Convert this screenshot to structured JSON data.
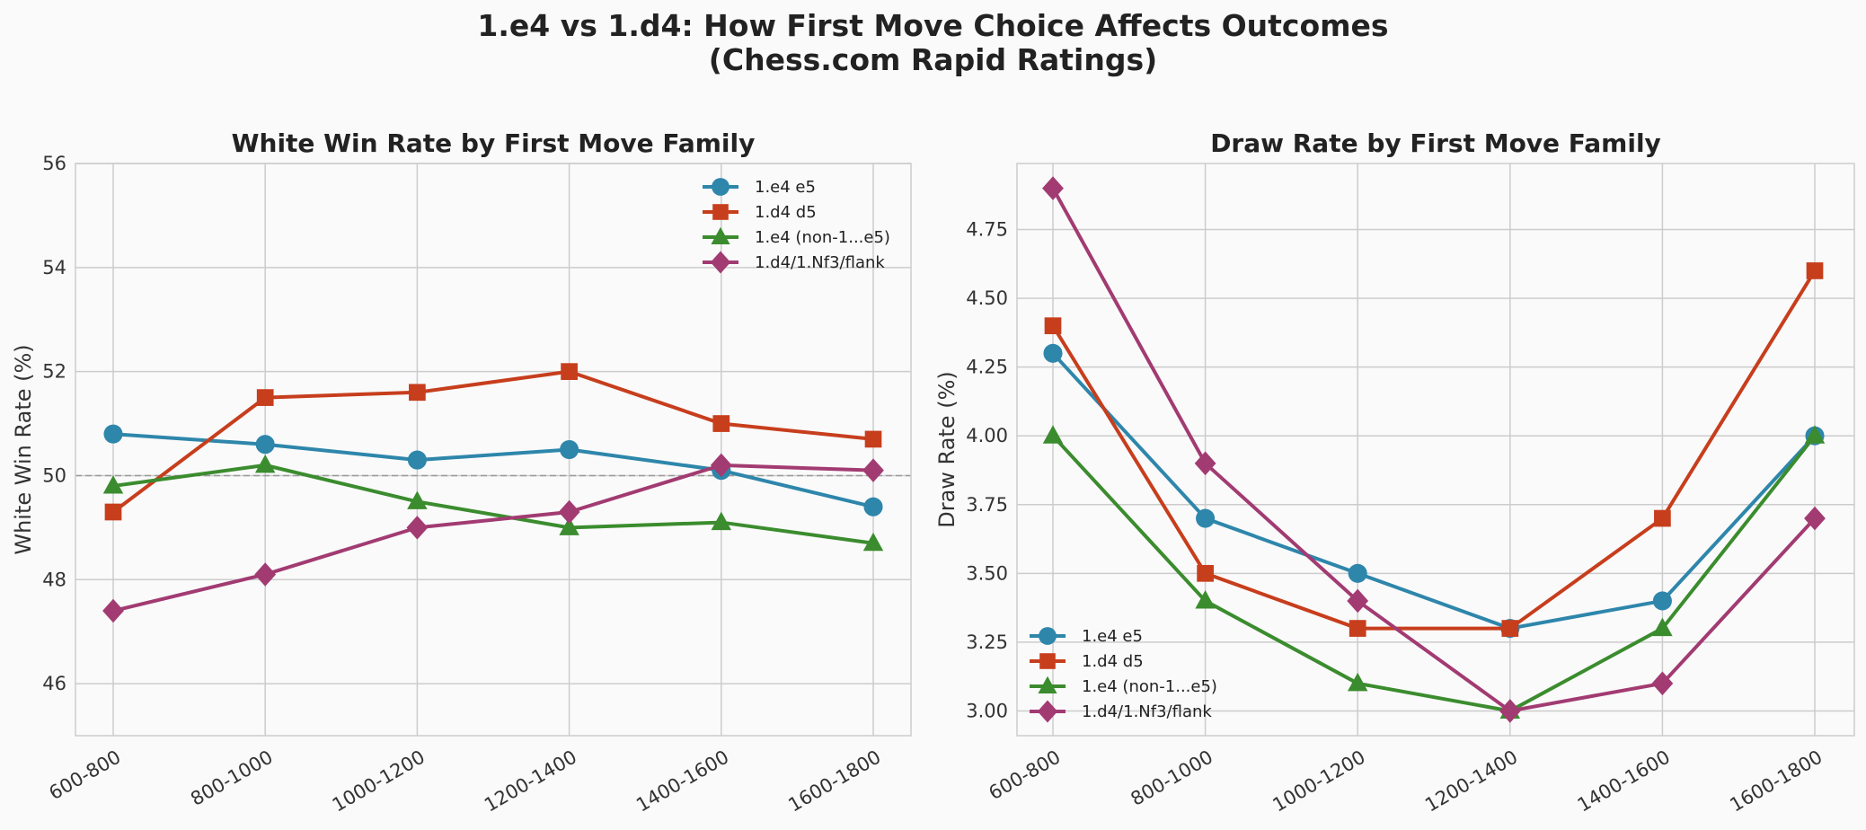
{
  "figure": {
    "title_line1": "1.e4 vs 1.d4: How First Move Choice Affects Outcomes",
    "title_line2": "(Chess.com Rapid Ratings)"
  },
  "chart_data": [
    {
      "type": "line",
      "title": "White Win Rate by First Move Family",
      "xlabel": "",
      "ylabel": "White Win Rate (%)",
      "categories": [
        "600-800",
        "800-1000",
        "1000-1200",
        "1200-1400",
        "1400-1600",
        "1600-1800"
      ],
      "ylim": [
        45,
        56
      ],
      "yticks": [
        46,
        48,
        50,
        52,
        54,
        56
      ],
      "ytick_labels": [
        "46",
        "48",
        "50",
        "52",
        "54",
        "56"
      ],
      "reference_line": 50,
      "grid": true,
      "legend_position": "upper-right",
      "series": [
        {
          "name": "1.e4 e5",
          "color": "#2e86ab",
          "marker": "circle",
          "values": [
            50.8,
            50.6,
            50.3,
            50.5,
            50.1,
            49.4
          ]
        },
        {
          "name": "1.d4 d5",
          "color": "#c73e1d",
          "marker": "square",
          "values": [
            49.3,
            51.5,
            51.6,
            52.0,
            51.0,
            50.7
          ]
        },
        {
          "name": "1.e4 (non-1...e5)",
          "color": "#3b8c2e",
          "marker": "triangle",
          "values": [
            49.8,
            50.2,
            49.5,
            49.0,
            49.1,
            48.7
          ]
        },
        {
          "name": "1.d4/1.Nf3/flank",
          "color": "#a23b72",
          "marker": "diamond",
          "values": [
            47.4,
            48.1,
            49.0,
            49.3,
            50.2,
            50.1
          ]
        }
      ]
    },
    {
      "type": "line",
      "title": "Draw Rate by First Move Family",
      "xlabel": "",
      "ylabel": "Draw Rate (%)",
      "categories": [
        "600-800",
        "800-1000",
        "1000-1200",
        "1200-1400",
        "1400-1600",
        "1600-1800"
      ],
      "ylim": [
        2.91,
        4.99
      ],
      "yticks": [
        3.0,
        3.25,
        3.5,
        3.75,
        4.0,
        4.25,
        4.5,
        4.75
      ],
      "ytick_labels": [
        "3.00",
        "3.25",
        "3.50",
        "3.75",
        "4.00",
        "4.25",
        "4.50",
        "4.75"
      ],
      "grid": true,
      "legend_position": "lower-left",
      "series": [
        {
          "name": "1.e4 e5",
          "color": "#2e86ab",
          "marker": "circle",
          "values": [
            4.3,
            3.7,
            3.5,
            3.3,
            3.4,
            4.0
          ]
        },
        {
          "name": "1.d4 d5",
          "color": "#c73e1d",
          "marker": "square",
          "values": [
            4.4,
            3.5,
            3.3,
            3.3,
            3.7,
            4.6
          ]
        },
        {
          "name": "1.e4 (non-1...e5)",
          "color": "#3b8c2e",
          "marker": "triangle",
          "values": [
            4.0,
            3.4,
            3.1,
            3.0,
            3.3,
            4.0
          ]
        },
        {
          "name": "1.d4/1.Nf3/flank",
          "color": "#a23b72",
          "marker": "diamond",
          "values": [
            4.9,
            3.9,
            3.4,
            3.0,
            3.1,
            3.7
          ]
        }
      ]
    }
  ]
}
